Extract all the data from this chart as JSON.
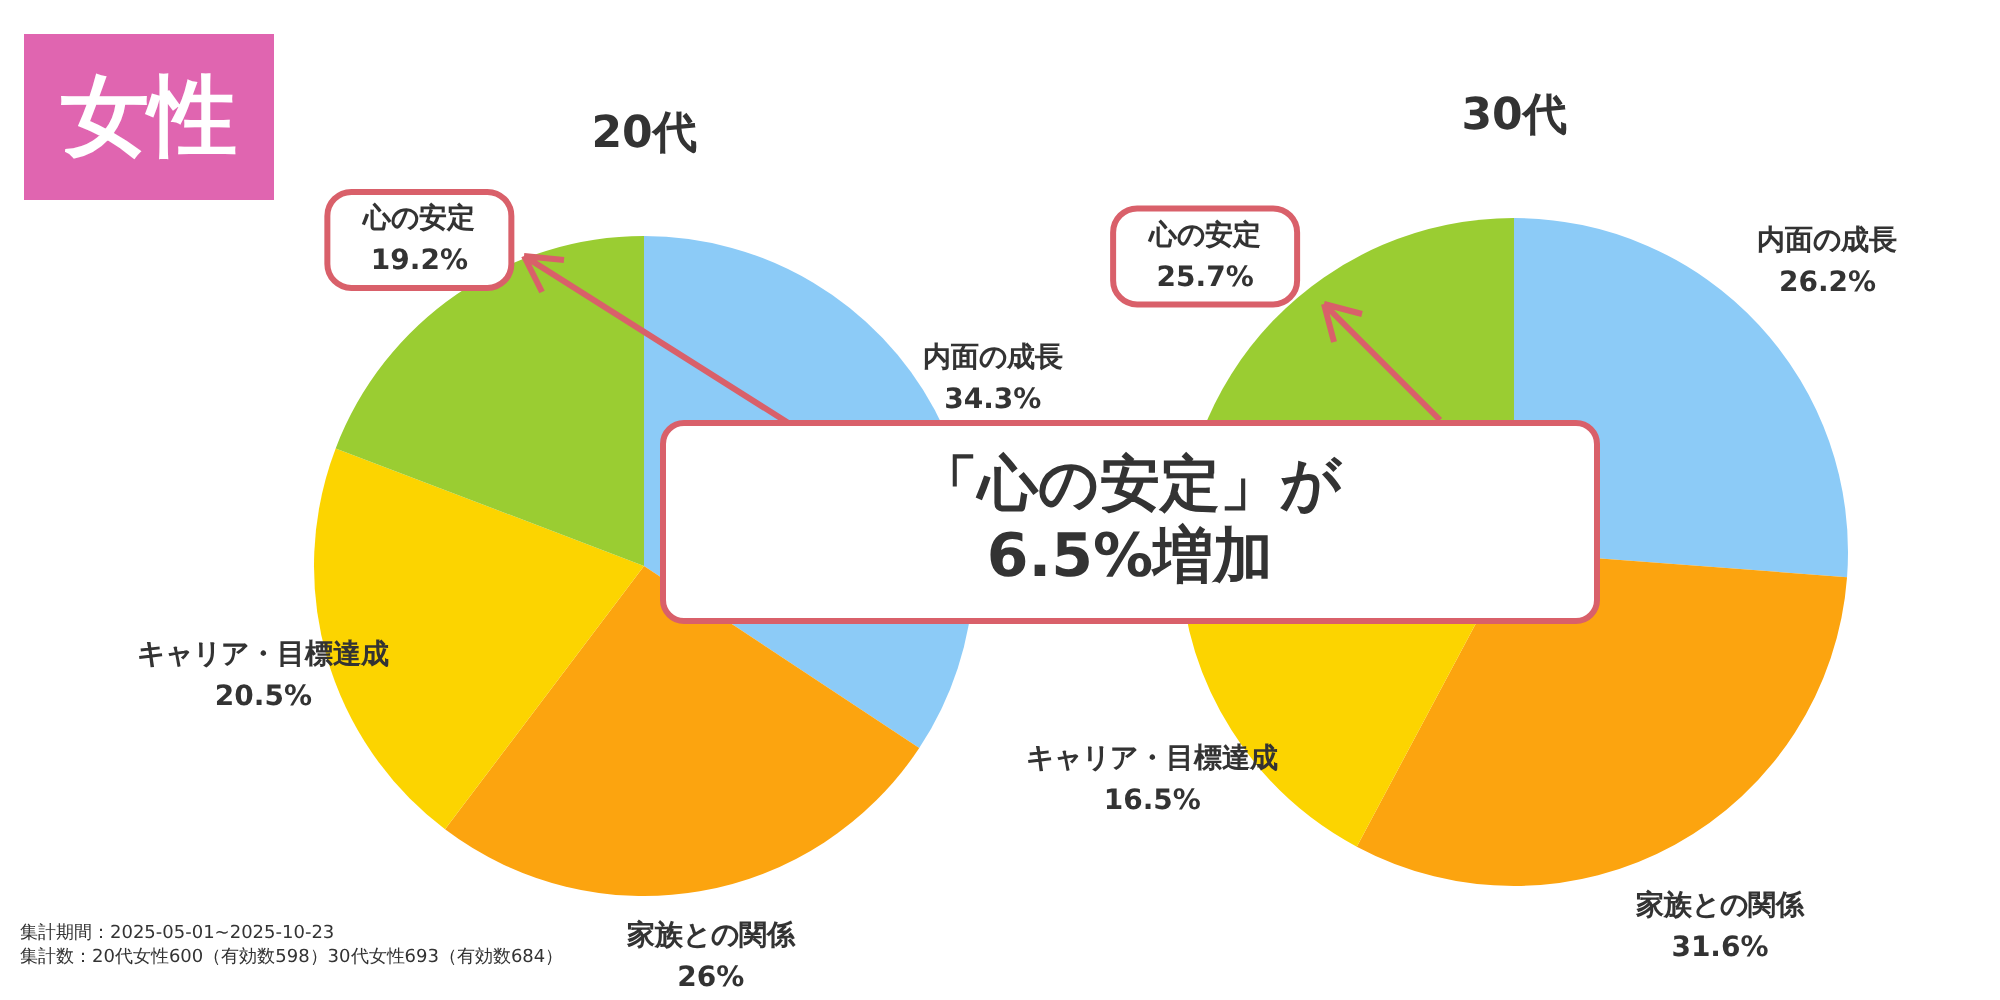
{
  "chart_data": [
    {
      "type": "pie",
      "title": "20代",
      "categories": [
        "内面の成長",
        "家族との関係",
        "キャリア・目標達成",
        "心の安定"
      ],
      "values": [
        34.3,
        26,
        20.5,
        19.2
      ],
      "value_labels": [
        "34.3%",
        "26%",
        "20.5%",
        "19.2%"
      ],
      "colors": [
        "#8ccbf7",
        "#fca40f",
        "#fcd400",
        "#9acd32"
      ],
      "annotations": [
        "女性",
        "集計期間：2025-05-01~2025-10-23",
        "集計数：20代女性600（有効数598）30代女性693（有効数684）"
      ]
    },
    {
      "type": "pie",
      "title": "30代",
      "categories": [
        "内面の成長",
        "家族との関係",
        "キャリア・目標達成",
        "心の安定"
      ],
      "values": [
        26.2,
        31.6,
        16.5,
        25.7
      ],
      "value_labels": [
        "26.2%",
        "31.6%",
        "16.5%",
        "25.7%"
      ],
      "colors": [
        "#8ccbf7",
        "#fca40f",
        "#fcd400",
        "#9acd32"
      ],
      "annotations": [
        "「心の安定」が\n6.5%増加"
      ]
    }
  ]
}
